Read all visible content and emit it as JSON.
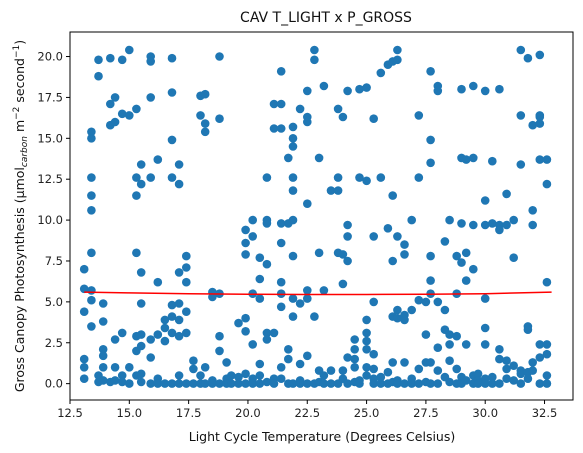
{
  "chart_data": {
    "type": "scatter",
    "title": "CAV T_LIGHT x P_GROSS",
    "xlabel": "Light Cycle Temperature (Degrees Celsius)",
    "ylabel_main": "Gross Canopy Photosynthesis (μmol",
    "ylabel_sub": "carbon",
    "ylabel_rest": " m",
    "ylabel_sup1": "−2",
    "ylabel_rest2": " second",
    "ylabel_sup2": "−1",
    "ylabel_end": ")",
    "xlim": [
      12.5,
      33.7
    ],
    "ylim": [
      -1.0,
      21.5
    ],
    "xticks": [
      12.5,
      15.0,
      17.5,
      20.0,
      22.5,
      25.0,
      27.5,
      30.0,
      32.5
    ],
    "xtick_labels": [
      "12.5",
      "15.0",
      "17.5",
      "20.0",
      "22.5",
      "25.0",
      "27.5",
      "30.0",
      "32.5"
    ],
    "yticks": [
      0.0,
      2.5,
      5.0,
      7.5,
      10.0,
      12.5,
      15.0,
      17.5,
      20.0
    ],
    "ytick_labels": [
      "0.0",
      "2.5",
      "5.0",
      "7.5",
      "10.0",
      "12.5",
      "15.0",
      "17.5",
      "20.0"
    ],
    "grid": false,
    "point_color": "#1f77b4",
    "line_color": "#ff0000",
    "points": [
      [
        13.1,
        7.0
      ],
      [
        13.1,
        5.8
      ],
      [
        13.1,
        4.4
      ],
      [
        13.1,
        1.5
      ],
      [
        13.1,
        1.0
      ],
      [
        13.1,
        0.3
      ],
      [
        13.4,
        15.4
      ],
      [
        13.4,
        15.0
      ],
      [
        13.4,
        12.6
      ],
      [
        13.4,
        11.5
      ],
      [
        13.4,
        10.6
      ],
      [
        13.4,
        8.0
      ],
      [
        13.4,
        5.7
      ],
      [
        13.4,
        5.1
      ],
      [
        13.4,
        3.5
      ],
      [
        13.7,
        19.8
      ],
      [
        13.7,
        18.8
      ],
      [
        13.7,
        0.5
      ],
      [
        13.7,
        0.1
      ],
      [
        13.9,
        4.9
      ],
      [
        13.9,
        3.8
      ],
      [
        13.9,
        2.1
      ],
      [
        13.9,
        1.7
      ],
      [
        13.9,
        1.0
      ],
      [
        13.9,
        0.2
      ],
      [
        14.2,
        19.9
      ],
      [
        14.2,
        17.1
      ],
      [
        14.2,
        15.8
      ],
      [
        14.2,
        0.1
      ],
      [
        14.4,
        17.5
      ],
      [
        14.4,
        16.0
      ],
      [
        14.4,
        2.7
      ],
      [
        14.4,
        1.0
      ],
      [
        14.4,
        0.2
      ],
      [
        14.7,
        19.8
      ],
      [
        14.7,
        16.5
      ],
      [
        14.7,
        3.1
      ],
      [
        14.7,
        0.5
      ],
      [
        14.7,
        0.1
      ],
      [
        15.0,
        20.4
      ],
      [
        15.0,
        16.4
      ],
      [
        15.0,
        1.0
      ],
      [
        15.0,
        0.0
      ],
      [
        15.3,
        16.8
      ],
      [
        15.3,
        12.6
      ],
      [
        15.3,
        11.5
      ],
      [
        15.3,
        8.0
      ],
      [
        15.3,
        2.9
      ],
      [
        15.3,
        2.0
      ],
      [
        15.3,
        0.5
      ],
      [
        15.5,
        13.4
      ],
      [
        15.5,
        12.2
      ],
      [
        15.5,
        6.8
      ],
      [
        15.5,
        4.9
      ],
      [
        15.5,
        3.0
      ],
      [
        15.5,
        2.3
      ],
      [
        15.5,
        0.6
      ],
      [
        15.5,
        0.1
      ],
      [
        15.9,
        20.0
      ],
      [
        15.9,
        19.7
      ],
      [
        15.9,
        17.5
      ],
      [
        15.9,
        12.6
      ],
      [
        15.9,
        2.7
      ],
      [
        15.9,
        1.6
      ],
      [
        15.9,
        0.0
      ],
      [
        16.2,
        13.7
      ],
      [
        16.2,
        6.2
      ],
      [
        16.2,
        3.0
      ],
      [
        16.2,
        0.3
      ],
      [
        16.2,
        0.0
      ],
      [
        16.5,
        3.9
      ],
      [
        16.5,
        3.4
      ],
      [
        16.5,
        2.6
      ],
      [
        16.5,
        0.0
      ],
      [
        16.8,
        19.9
      ],
      [
        16.8,
        17.8
      ],
      [
        16.8,
        14.9
      ],
      [
        16.8,
        12.6
      ],
      [
        16.8,
        4.8
      ],
      [
        16.8,
        4.1
      ],
      [
        16.8,
        3.1
      ],
      [
        16.8,
        0.0
      ],
      [
        17.1,
        13.4
      ],
      [
        17.1,
        12.2
      ],
      [
        17.1,
        6.8
      ],
      [
        17.1,
        4.9
      ],
      [
        17.1,
        3.9
      ],
      [
        17.1,
        2.9
      ],
      [
        17.1,
        0.5
      ],
      [
        17.1,
        0.0
      ],
      [
        17.4,
        7.8
      ],
      [
        17.4,
        7.1
      ],
      [
        17.4,
        6.2
      ],
      [
        17.4,
        4.4
      ],
      [
        17.4,
        3.1
      ],
      [
        17.4,
        0.0
      ],
      [
        17.7,
        1.4
      ],
      [
        17.7,
        0.9
      ],
      [
        17.7,
        0.0
      ],
      [
        18.0,
        17.6
      ],
      [
        18.0,
        16.4
      ],
      [
        18.0,
        0.5
      ],
      [
        18.0,
        0.0
      ],
      [
        18.2,
        17.7
      ],
      [
        18.2,
        15.9
      ],
      [
        18.2,
        15.4
      ],
      [
        18.2,
        1.0
      ],
      [
        18.2,
        0.0
      ],
      [
        18.5,
        5.6
      ],
      [
        18.5,
        5.3
      ],
      [
        18.5,
        0.2
      ],
      [
        18.5,
        0.0
      ],
      [
        18.8,
        20.0
      ],
      [
        18.8,
        16.2
      ],
      [
        18.8,
        5.5
      ],
      [
        18.8,
        2.9
      ],
      [
        18.8,
        2.0
      ],
      [
        18.8,
        0.0
      ],
      [
        19.1,
        0.3
      ],
      [
        19.1,
        1.3
      ],
      [
        19.1,
        0.0
      ],
      [
        19.3,
        0.5
      ],
      [
        19.3,
        0.0
      ],
      [
        19.6,
        3.7
      ],
      [
        19.6,
        0.4
      ],
      [
        19.6,
        0.0
      ],
      [
        19.9,
        9.4
      ],
      [
        19.9,
        8.6
      ],
      [
        19.9,
        7.9
      ],
      [
        19.9,
        4.0
      ],
      [
        19.9,
        3.2
      ],
      [
        19.9,
        0.6
      ],
      [
        19.9,
        0.0
      ],
      [
        20.2,
        10.0
      ],
      [
        20.2,
        9.0
      ],
      [
        20.2,
        5.5
      ],
      [
        20.2,
        2.4
      ],
      [
        20.2,
        0.3
      ],
      [
        20.2,
        0.0
      ],
      [
        20.5,
        7.7
      ],
      [
        20.5,
        6.4
      ],
      [
        20.5,
        5.2
      ],
      [
        20.5,
        1.2
      ],
      [
        20.5,
        0.5
      ],
      [
        20.5,
        0.0
      ],
      [
        20.8,
        12.6
      ],
      [
        20.8,
        10.0
      ],
      [
        20.8,
        9.8
      ],
      [
        20.8,
        7.3
      ],
      [
        20.8,
        3.1
      ],
      [
        20.8,
        2.7
      ],
      [
        20.8,
        0.1
      ],
      [
        21.1,
        17.1
      ],
      [
        21.1,
        15.6
      ],
      [
        21.1,
        3.1
      ],
      [
        21.1,
        0.3
      ],
      [
        21.1,
        0.0
      ],
      [
        21.4,
        19.1
      ],
      [
        21.4,
        17.1
      ],
      [
        21.4,
        15.6
      ],
      [
        21.4,
        9.8
      ],
      [
        21.4,
        8.6
      ],
      [
        21.4,
        6.2
      ],
      [
        21.4,
        5.5
      ],
      [
        21.4,
        4.7
      ],
      [
        21.4,
        1.0
      ],
      [
        21.4,
        0.3
      ],
      [
        21.7,
        13.8
      ],
      [
        21.7,
        9.8
      ],
      [
        21.7,
        2.1
      ],
      [
        21.7,
        1.5
      ],
      [
        21.7,
        0.0
      ],
      [
        21.9,
        15.7
      ],
      [
        21.9,
        15.0
      ],
      [
        21.9,
        14.5
      ],
      [
        21.9,
        12.6
      ],
      [
        21.9,
        11.8
      ],
      [
        21.9,
        10.0
      ],
      [
        21.9,
        7.8
      ],
      [
        21.9,
        5.2
      ],
      [
        21.9,
        4.1
      ],
      [
        21.9,
        0.0
      ],
      [
        22.2,
        16.8
      ],
      [
        22.2,
        4.9
      ],
      [
        22.2,
        1.2
      ],
      [
        22.2,
        0.2
      ],
      [
        22.2,
        0.0
      ],
      [
        22.5,
        17.9
      ],
      [
        22.5,
        16.3
      ],
      [
        22.5,
        16.0
      ],
      [
        22.5,
        11.0
      ],
      [
        22.5,
        5.7
      ],
      [
        22.5,
        5.2
      ],
      [
        22.5,
        1.7
      ],
      [
        22.5,
        0.0
      ],
      [
        22.8,
        20.4
      ],
      [
        22.8,
        19.8
      ],
      [
        22.8,
        4.1
      ],
      [
        22.8,
        0.0
      ],
      [
        23.0,
        13.8
      ],
      [
        23.0,
        8.0
      ],
      [
        23.0,
        0.8
      ],
      [
        23.0,
        0.1
      ],
      [
        23.2,
        18.2
      ],
      [
        23.2,
        5.7
      ],
      [
        23.2,
        0.5
      ],
      [
        23.2,
        0.0
      ],
      [
        23.5,
        11.8
      ],
      [
        23.5,
        0.8
      ],
      [
        23.5,
        0.0
      ],
      [
        23.8,
        16.8
      ],
      [
        23.8,
        12.6
      ],
      [
        23.8,
        11.8
      ],
      [
        23.8,
        8.0
      ],
      [
        23.8,
        0.0
      ],
      [
        24.0,
        16.3
      ],
      [
        24.0,
        7.9
      ],
      [
        24.0,
        6.1
      ],
      [
        24.0,
        0.8
      ],
      [
        24.0,
        0.3
      ],
      [
        24.2,
        17.9
      ],
      [
        24.2,
        9.7
      ],
      [
        24.2,
        9.0
      ],
      [
        24.2,
        7.5
      ],
      [
        24.2,
        1.6
      ],
      [
        24.2,
        0.0
      ],
      [
        24.5,
        2.7
      ],
      [
        24.5,
        2.1
      ],
      [
        24.5,
        1.5
      ],
      [
        24.5,
        1.0
      ],
      [
        24.5,
        0.1
      ],
      [
        24.7,
        18.0
      ],
      [
        24.7,
        12.6
      ],
      [
        24.7,
        0.2
      ],
      [
        24.7,
        0.0
      ],
      [
        25.0,
        18.1
      ],
      [
        25.0,
        12.4
      ],
      [
        25.0,
        3.9
      ],
      [
        25.0,
        3.1
      ],
      [
        25.0,
        2.6
      ],
      [
        25.0,
        2.1
      ],
      [
        25.0,
        1.0
      ],
      [
        25.0,
        0.5
      ],
      [
        25.3,
        16.2
      ],
      [
        25.3,
        9.0
      ],
      [
        25.3,
        5.0
      ],
      [
        25.3,
        1.8
      ],
      [
        25.3,
        0.9
      ],
      [
        25.3,
        0.3
      ],
      [
        25.3,
        0.0
      ],
      [
        25.6,
        19.0
      ],
      [
        25.6,
        12.6
      ],
      [
        25.6,
        0.4
      ],
      [
        25.6,
        0.0
      ],
      [
        25.9,
        19.5
      ],
      [
        25.9,
        9.5
      ],
      [
        25.9,
        0.7
      ],
      [
        25.9,
        0.0
      ],
      [
        26.1,
        19.7
      ],
      [
        26.1,
        11.5
      ],
      [
        26.1,
        7.5
      ],
      [
        26.1,
        4.1
      ],
      [
        26.1,
        1.3
      ],
      [
        26.1,
        0.1
      ],
      [
        26.3,
        20.4
      ],
      [
        26.3,
        19.8
      ],
      [
        26.3,
        9.0
      ],
      [
        26.3,
        4.5
      ],
      [
        26.3,
        4.0
      ],
      [
        26.3,
        0.2
      ],
      [
        26.3,
        0.0
      ],
      [
        26.6,
        8.5
      ],
      [
        26.6,
        7.9
      ],
      [
        26.6,
        4.2
      ],
      [
        26.6,
        3.9
      ],
      [
        26.6,
        1.3
      ],
      [
        26.6,
        0.0
      ],
      [
        26.9,
        10.0
      ],
      [
        26.9,
        4.5
      ],
      [
        26.9,
        0.3
      ],
      [
        26.9,
        0.0
      ],
      [
        27.2,
        16.4
      ],
      [
        27.2,
        12.6
      ],
      [
        27.2,
        5.1
      ],
      [
        27.2,
        0.9
      ],
      [
        27.2,
        0.0
      ],
      [
        27.5,
        5.0
      ],
      [
        27.5,
        3.0
      ],
      [
        27.5,
        1.3
      ],
      [
        27.5,
        0.1
      ],
      [
        27.7,
        19.1
      ],
      [
        27.7,
        14.9
      ],
      [
        27.7,
        13.5
      ],
      [
        27.7,
        7.8
      ],
      [
        27.7,
        6.3
      ],
      [
        27.7,
        5.5
      ],
      [
        27.7,
        1.3
      ],
      [
        27.7,
        0.0
      ],
      [
        28.0,
        18.2
      ],
      [
        28.0,
        17.9
      ],
      [
        28.0,
        5.0
      ],
      [
        28.0,
        2.2
      ],
      [
        28.0,
        0.8
      ],
      [
        28.0,
        0.0
      ],
      [
        28.3,
        8.7
      ],
      [
        28.3,
        4.5
      ],
      [
        28.3,
        3.3
      ],
      [
        28.3,
        0.4
      ],
      [
        28.5,
        10.0
      ],
      [
        28.5,
        3.0
      ],
      [
        28.5,
        2.4
      ],
      [
        28.5,
        1.4
      ],
      [
        28.5,
        0.1
      ],
      [
        28.8,
        7.8
      ],
      [
        28.8,
        5.5
      ],
      [
        28.8,
        2.9
      ],
      [
        28.8,
        0.9
      ],
      [
        28.8,
        0.0
      ],
      [
        29.0,
        18.0
      ],
      [
        29.0,
        13.8
      ],
      [
        29.0,
        9.8
      ],
      [
        29.0,
        7.4
      ],
      [
        29.0,
        0.4
      ],
      [
        29.0,
        0.0
      ],
      [
        29.2,
        13.7
      ],
      [
        29.2,
        8.0
      ],
      [
        29.2,
        6.3
      ],
      [
        29.2,
        2.4
      ],
      [
        29.2,
        0.2
      ],
      [
        29.5,
        18.2
      ],
      [
        29.5,
        13.8
      ],
      [
        29.5,
        9.7
      ],
      [
        29.5,
        7.0
      ],
      [
        29.5,
        0.5
      ],
      [
        29.5,
        0.0
      ],
      [
        29.7,
        0.6
      ],
      [
        29.7,
        0.2
      ],
      [
        29.7,
        0.0
      ],
      [
        30.0,
        17.9
      ],
      [
        30.0,
        11.2
      ],
      [
        30.0,
        9.7
      ],
      [
        30.0,
        5.2
      ],
      [
        30.0,
        3.4
      ],
      [
        30.0,
        2.4
      ],
      [
        30.0,
        0.3
      ],
      [
        30.0,
        0.0
      ],
      [
        30.3,
        13.6
      ],
      [
        30.3,
        9.8
      ],
      [
        30.3,
        0.4
      ],
      [
        30.3,
        0.0
      ],
      [
        30.6,
        18.0
      ],
      [
        30.6,
        9.7
      ],
      [
        30.6,
        9.4
      ],
      [
        30.6,
        2.1
      ],
      [
        30.6,
        1.5
      ],
      [
        30.6,
        0.0
      ],
      [
        30.9,
        11.6
      ],
      [
        30.9,
        9.7
      ],
      [
        30.9,
        1.4
      ],
      [
        30.9,
        0.9
      ],
      [
        30.9,
        0.3
      ],
      [
        31.2,
        10.0
      ],
      [
        31.2,
        7.7
      ],
      [
        31.2,
        1.1
      ],
      [
        31.2,
        0.2
      ],
      [
        31.5,
        20.4
      ],
      [
        31.5,
        16.4
      ],
      [
        31.5,
        13.4
      ],
      [
        31.5,
        0.8
      ],
      [
        31.5,
        0.6
      ],
      [
        31.5,
        0.0
      ],
      [
        31.8,
        19.9
      ],
      [
        31.8,
        3.5
      ],
      [
        31.8,
        3.3
      ],
      [
        31.8,
        0.7
      ],
      [
        31.8,
        0.3
      ],
      [
        32.0,
        15.8
      ],
      [
        32.0,
        10.6
      ],
      [
        32.0,
        9.7
      ],
      [
        32.0,
        1.3
      ],
      [
        32.0,
        0.8
      ],
      [
        32.3,
        20.1
      ],
      [
        32.3,
        16.4
      ],
      [
        32.3,
        16.3
      ],
      [
        32.3,
        15.9
      ],
      [
        32.3,
        13.7
      ],
      [
        32.3,
        2.4
      ],
      [
        32.3,
        1.6
      ],
      [
        32.3,
        0.0
      ],
      [
        32.6,
        13.7
      ],
      [
        32.6,
        12.2
      ],
      [
        32.6,
        6.2
      ],
      [
        32.6,
        2.4
      ],
      [
        32.6,
        1.8
      ],
      [
        32.6,
        0.5
      ],
      [
        32.6,
        0.0
      ]
    ],
    "trend_line": [
      [
        13.1,
        5.6
      ],
      [
        15.0,
        5.55
      ],
      [
        17.5,
        5.5
      ],
      [
        20.0,
        5.47
      ],
      [
        22.5,
        5.45
      ],
      [
        25.0,
        5.45
      ],
      [
        27.5,
        5.47
      ],
      [
        30.0,
        5.5
      ],
      [
        32.8,
        5.6
      ]
    ]
  }
}
